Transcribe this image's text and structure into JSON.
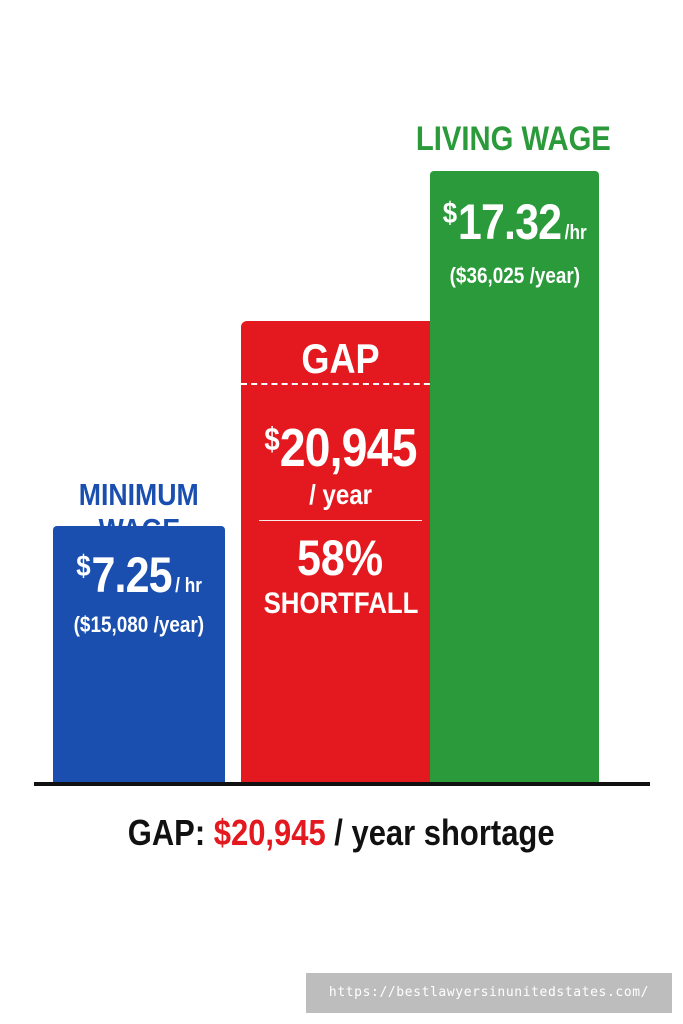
{
  "chart_data": {
    "type": "bar",
    "categories": [
      "MINIMUM WAGE",
      "GAP",
      "LIVING WAGE"
    ],
    "category_lines": {
      "minimum": [
        "MINIMUM",
        "WAGE"
      ],
      "living": [
        "LIVING WAGE"
      ]
    },
    "values_annual": [
      15080,
      20945,
      36025
    ],
    "ylim": [
      0,
      36025
    ],
    "bars": {
      "minimum": {
        "currency": "$",
        "rate": "7.25",
        "unit": "/ hr",
        "annual": "($15,080 /year)"
      },
      "gap": {
        "title": "GAP",
        "currency": "$",
        "amount": "20,945",
        "unit": "/ year",
        "percent": "58%",
        "shortfall": "SHORTFALL"
      },
      "living": {
        "currency": "$",
        "rate": "17.32",
        "unit": "/hr",
        "annual": "($36,025 /year)"
      }
    },
    "colors": {
      "minimum": "#1a4fb0",
      "gap": "#e3191f",
      "living": "#2a9a3a",
      "minimum_label": "#1a4fb0",
      "living_label": "#2a9a3a"
    },
    "grid": false,
    "legend": "none"
  },
  "summary": {
    "prefix": "GAP:",
    "amount": "$20,945",
    "suffix": "/ year shortage"
  },
  "watermark": "https://bestlawyersinunitedstates.com/"
}
